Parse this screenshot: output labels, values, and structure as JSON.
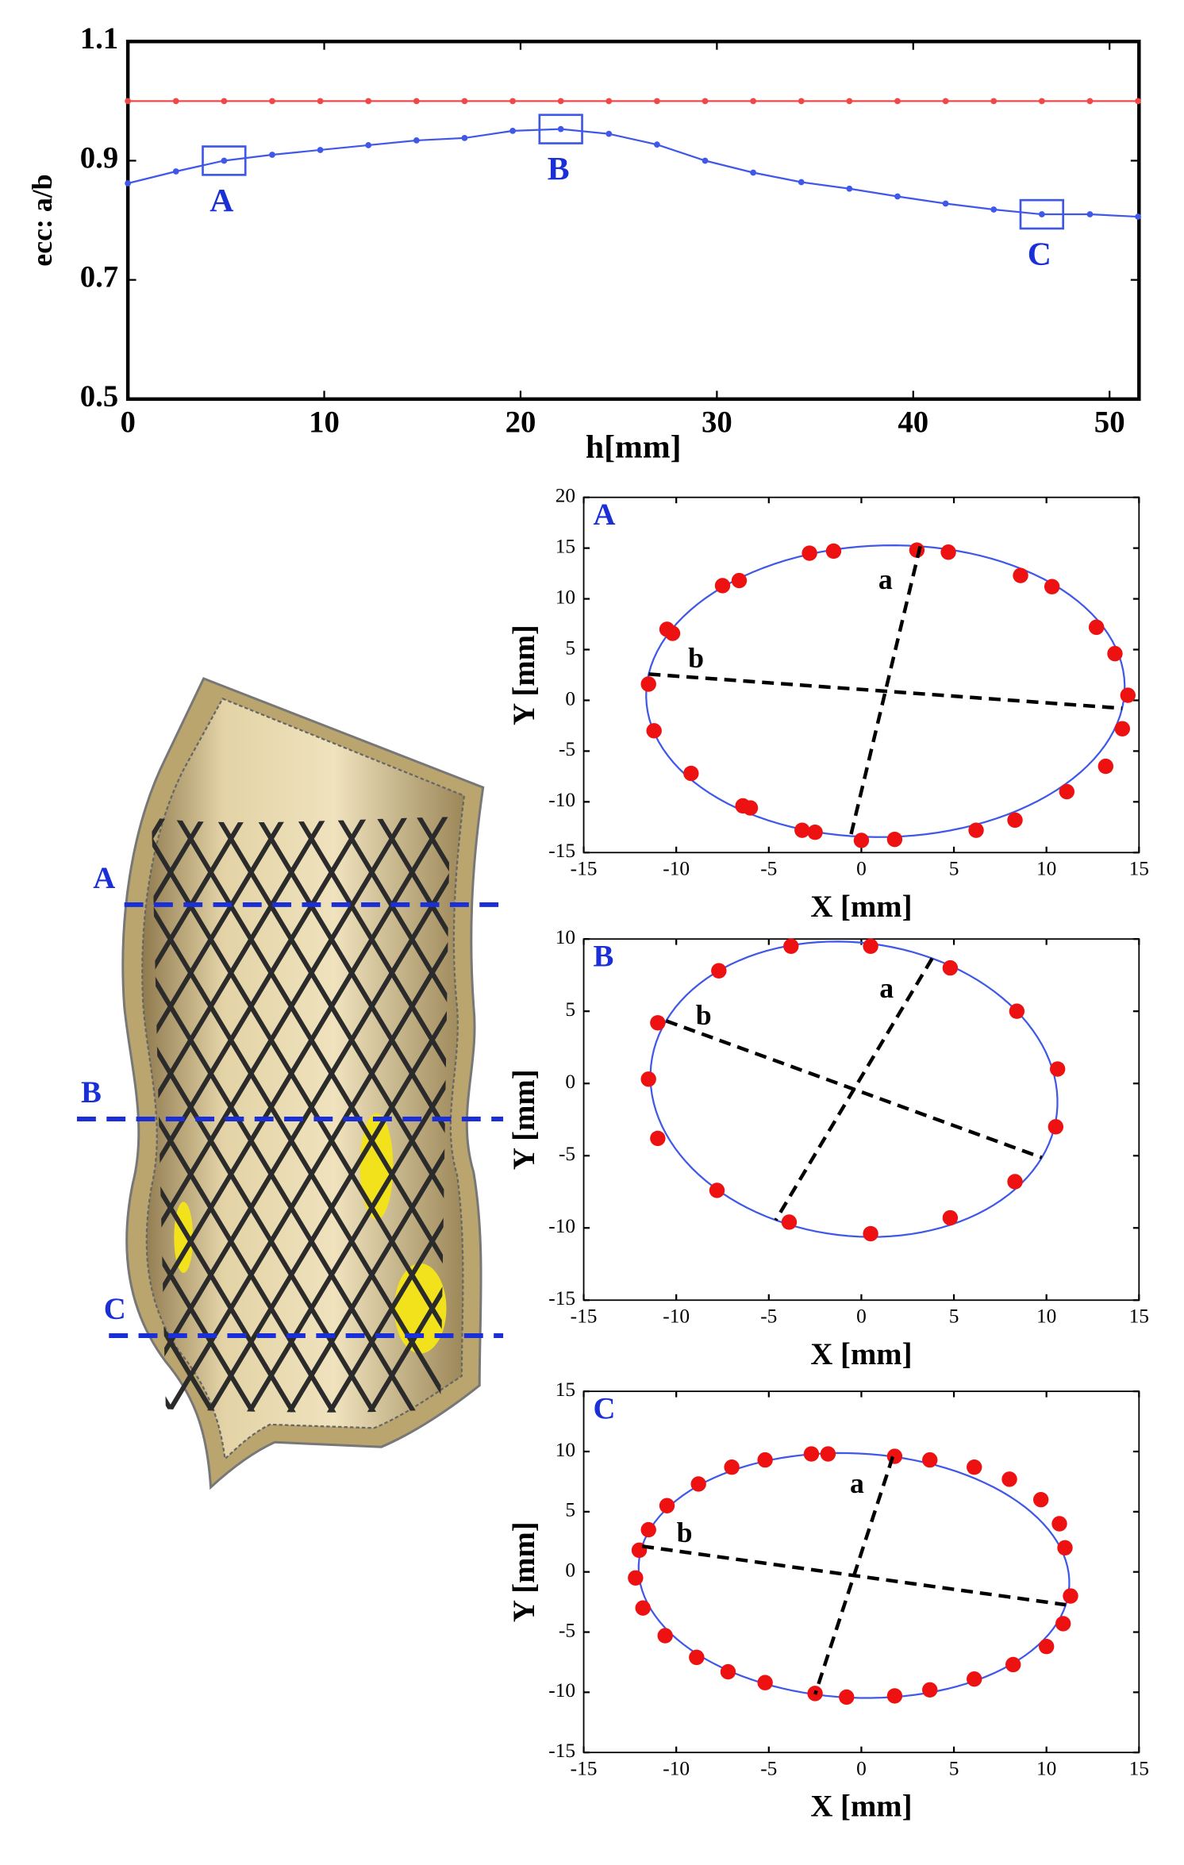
{
  "chart_data": [
    {
      "type": "line",
      "ylabel": "ecc: a/b",
      "xlabel": "h[mm]",
      "x": [
        0,
        2.45,
        4.9,
        7.35,
        9.8,
        12.25,
        14.7,
        17.15,
        19.6,
        22.05,
        24.5,
        26.95,
        29.4,
        31.85,
        34.3,
        36.75,
        39.2,
        41.65,
        44.1,
        46.55,
        49,
        51.45
      ],
      "series": [
        {
          "color": "#f04848",
          "values": [
            1,
            1,
            1,
            1,
            1,
            1,
            1,
            1,
            1,
            1,
            1,
            1,
            1,
            1,
            1,
            1,
            1,
            1,
            1,
            1,
            1,
            1
          ]
        },
        {
          "color": "#4058e8",
          "values": [
            0.862,
            0.882,
            0.9,
            0.91,
            0.918,
            0.926,
            0.934,
            0.938,
            0.95,
            0.953,
            0.945,
            0.927,
            0.9,
            0.88,
            0.864,
            0.853,
            0.84,
            0.828,
            0.818,
            0.81,
            0.81,
            0.806
          ]
        }
      ],
      "annotations": [
        {
          "text": "A",
          "x": 4.9,
          "y": 0.9
        },
        {
          "text": "B",
          "x": 22.05,
          "y": 0.953
        },
        {
          "text": "C",
          "x": 46.55,
          "y": 0.81
        }
      ],
      "xlim": [
        0,
        51.5
      ],
      "ylim": [
        0.5,
        1.1
      ],
      "xticks": [
        0,
        10,
        20,
        30,
        40,
        50
      ],
      "yticks": [
        0.5,
        0.7,
        0.9,
        1.1
      ]
    },
    {
      "type": "scatter",
      "title": "A",
      "xlabel": "X [mm]",
      "ylabel": "Y [mm]",
      "color": "#ee1111",
      "x": [
        -2.8,
        -1.5,
        3,
        4.7,
        -7.5,
        -6.6,
        8.6,
        10.3,
        -10.5,
        -10.2,
        12.7,
        13.7,
        -11.5,
        14.4,
        14.1,
        -11.2,
        13.2,
        -9.2,
        11.1,
        -6.4,
        -6,
        8.3,
        6.2,
        -3.2,
        -2.5,
        0,
        1.8
      ],
      "values": [
        14.5,
        14.7,
        14.8,
        14.6,
        11.3,
        11.8,
        12.3,
        11.2,
        7,
        6.6,
        7.2,
        4.6,
        1.6,
        0.5,
        -2.8,
        -3,
        -6.5,
        -7.2,
        -9,
        -10.4,
        -10.6,
        -11.8,
        -12.8,
        -12.8,
        -13,
        -13.8,
        -13.7
      ],
      "ellipse": {
        "cx": 1.3,
        "cy": 0.9,
        "rx": 12.9,
        "ry": 14.4,
        "angle": -7.5,
        "color": "#4058e8"
      },
      "annotations": [
        "a",
        "b"
      ],
      "xlim": [
        -15,
        15
      ],
      "ylim": [
        -15,
        20
      ],
      "xticks": [
        -15,
        -10,
        -5,
        0,
        5,
        10,
        15
      ],
      "yticks": [
        -15,
        -10,
        -5,
        0,
        5,
        10,
        15,
        20
      ]
    },
    {
      "type": "scatter",
      "title": "B",
      "xlabel": "X [mm]",
      "ylabel": "Y [mm]",
      "color": "#ee1111",
      "x": [
        -3.8,
        0.5,
        -7.7,
        4.8,
        -11,
        8.4,
        -11.5,
        10.6,
        10.5,
        -11,
        8.3,
        -7.8,
        4.8,
        -3.9,
        0.5
      ],
      "values": [
        9.5,
        9.5,
        7.8,
        8,
        4.2,
        5,
        0.3,
        1,
        -3,
        -3.8,
        -6.8,
        -7.4,
        -9.3,
        -9.6,
        -10.4
      ],
      "ellipse": {
        "cx": -0.4,
        "cy": -0.4,
        "rx": 11.2,
        "ry": 10,
        "angle": -25,
        "color": "#4058e8"
      },
      "annotations": [
        "a",
        "b"
      ],
      "xlim": [
        -15,
        15
      ],
      "ylim": [
        -15,
        10
      ],
      "xticks": [
        -15,
        -10,
        -5,
        0,
        5,
        10,
        15
      ],
      "yticks": [
        -15,
        -10,
        -5,
        0,
        5,
        10
      ]
    },
    {
      "type": "scatter",
      "title": "C",
      "xlabel": "X [mm]",
      "ylabel": "Y [mm]",
      "color": "#ee1111",
      "x": [
        -2.7,
        -1.8,
        1.8,
        3.7,
        -5.2,
        -7,
        6.1,
        8,
        -8.8,
        -10.5,
        9.7,
        -11.5,
        10.7,
        -12,
        11,
        -12.2,
        11.3,
        -11.8,
        10.9,
        -10.6,
        10,
        -8.9,
        8.2,
        -7.2,
        6.1,
        -5.2,
        3.7,
        1.8,
        -2.5,
        -0.8
      ],
      "values": [
        9.8,
        9.8,
        9.6,
        9.3,
        9.3,
        8.7,
        8.7,
        7.7,
        7.3,
        5.5,
        6,
        3.5,
        4,
        1.8,
        2,
        -0.5,
        -2,
        -3,
        -4.3,
        -5.3,
        -6.2,
        -7.1,
        -7.7,
        -8.3,
        -8.9,
        -9.2,
        -9.8,
        -10.3,
        -10.1,
        -10.4
      ],
      "ellipse": {
        "cx": -0.4,
        "cy": -0.3,
        "rx": 11.7,
        "ry": 10.1,
        "angle": -12,
        "color": "#4058e8"
      },
      "annotations": [
        "a",
        "b"
      ],
      "xlim": [
        -15,
        15
      ],
      "ylim": [
        -15,
        15
      ],
      "xticks": [
        -15,
        -10,
        -5,
        0,
        5,
        10,
        15
      ],
      "yticks": [
        -15,
        -10,
        -5,
        0,
        5,
        10,
        15
      ]
    }
  ],
  "stent_figure": {
    "section_labels": [
      "A",
      "B",
      "C"
    ]
  }
}
